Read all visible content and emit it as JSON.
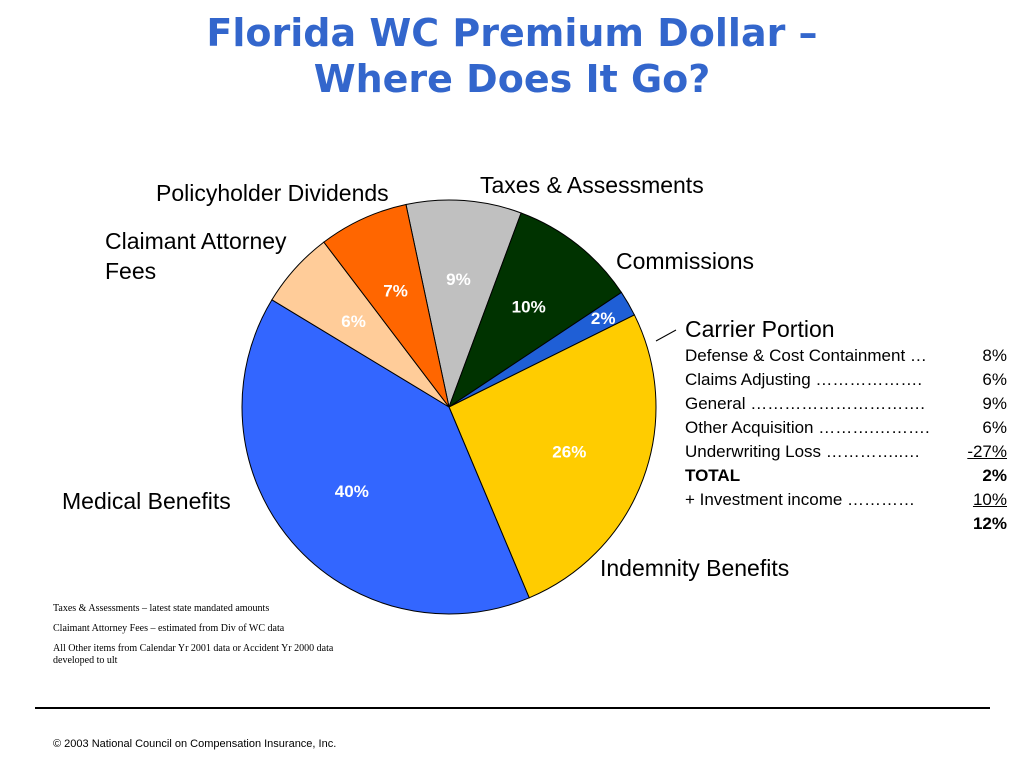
{
  "title_line1": "Florida WC Premium Dollar –",
  "title_line2": "Where Does It Go?",
  "chart_data": {
    "type": "pie",
    "title": "Florida WC Premium Dollar – Where Does It Go?",
    "slices": [
      {
        "label": "Taxes & Assessments",
        "value": 9,
        "pct_label": "9%",
        "color": "#c0c0c0",
        "pct_color": "#ffffff"
      },
      {
        "label": "Commissions",
        "value": 10,
        "pct_label": "10%",
        "color": "#003300",
        "pct_color": "#ffffff"
      },
      {
        "label": "Carrier Portion",
        "value": 2,
        "pct_label": "2%",
        "color": "#1f5fd6",
        "pct_color": "#ffffff"
      },
      {
        "label": "Indemnity Benefits",
        "value": 26,
        "pct_label": "26%",
        "color": "#ffcc00",
        "pct_color": "#ffffff"
      },
      {
        "label": "Medical Benefits",
        "value": 40,
        "pct_label": "40%",
        "color": "#3366ff",
        "pct_color": "#ffffff"
      },
      {
        "label": "Claimant Attorney Fees",
        "value": 6,
        "pct_label": "6%",
        "color": "#ffcc99",
        "pct_color": "#ffffff"
      },
      {
        "label": "Policyholder Dividends",
        "value": 7,
        "pct_label": "7%",
        "color": "#ff6600",
        "pct_color": "#ffffff"
      }
    ]
  },
  "labels": {
    "policyholder": "Policyholder Dividends",
    "taxes": "Taxes & Assessments",
    "attorney_line1": "Claimant Attorney",
    "attorney_line2": "Fees",
    "commissions": "Commissions",
    "medical": "Medical Benefits",
    "indemnity": "Indemnity Benefits"
  },
  "carrier": {
    "heading": "Carrier Portion",
    "rows": [
      {
        "label": "Defense & Cost Containment …",
        "value": "8%"
      },
      {
        "label": "Claims Adjusting ……………….",
        "value": "6%"
      },
      {
        "label": "General ………………………….",
        "value": "9%"
      },
      {
        "label": "Other Acquisition ……….……….",
        "value": "6%"
      },
      {
        "label": "Underwriting Loss …………..…",
        "value": "-27%"
      },
      {
        "label": "TOTAL",
        "value": "2%"
      },
      {
        "label": "+ Investment income …………",
        "value": "10%"
      },
      {
        "label": "",
        "value": "12%"
      }
    ]
  },
  "footnotes": {
    "taxes": "Taxes & Assessments – latest state mandated amounts",
    "attorney": "Claimant Attorney Fees – estimated from Div of WC data",
    "other": "All Other items from Calendar Yr 2001 data or Accident Yr 2000 data developed to ult"
  },
  "copyright": "© 2003 National Council on Compensation Insurance, Inc."
}
